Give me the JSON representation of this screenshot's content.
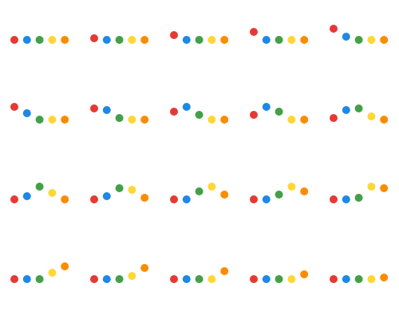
{
  "colors": [
    "#e53935",
    "#1e88e5",
    "#43a047",
    "#fdd835",
    "#fb8c00"
  ],
  "frames": [
    [
      0,
      0,
      0,
      0,
      0
    ],
    [
      2,
      0,
      0,
      0,
      0
    ],
    [
      6,
      0,
      0,
      0,
      0
    ],
    [
      10,
      0,
      0,
      0,
      0
    ],
    [
      14,
      4,
      0,
      0,
      0
    ],
    [
      16,
      8,
      0,
      0,
      0
    ],
    [
      14,
      12,
      2,
      0,
      0
    ],
    [
      10,
      16,
      6,
      0,
      0
    ],
    [
      6,
      16,
      10,
      0,
      0
    ],
    [
      2,
      12,
      14,
      4,
      0
    ],
    [
      0,
      4,
      16,
      8,
      0
    ],
    [
      0,
      4,
      14,
      12,
      2
    ],
    [
      0,
      0,
      10,
      16,
      6
    ],
    [
      0,
      0,
      6,
      16,
      10
    ],
    [
      0,
      0,
      2,
      16,
      14
    ],
    [
      0,
      0,
      0,
      8,
      16
    ],
    [
      0,
      0,
      0,
      4,
      14
    ],
    [
      0,
      0,
      0,
      0,
      10
    ],
    [
      0,
      0,
      0,
      0,
      6
    ],
    [
      0,
      0,
      0,
      0,
      2
    ]
  ]
}
